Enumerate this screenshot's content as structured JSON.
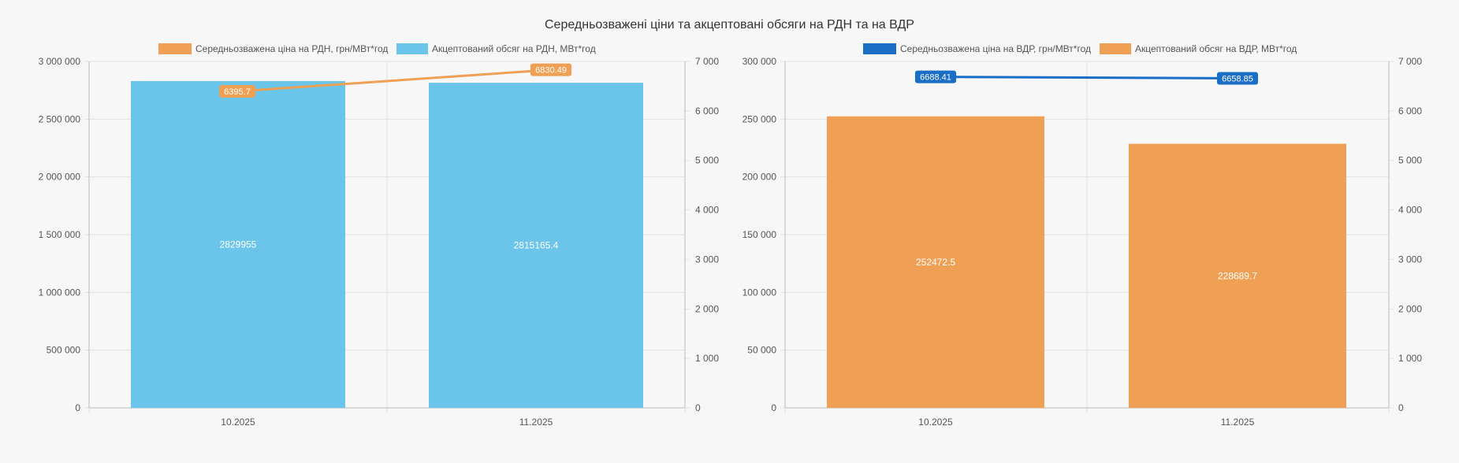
{
  "title": "Середньозважені ціни та акцептовані обсяги на РДН та на ВДР",
  "colors": {
    "blue_bar": "#6bc4ea",
    "orange": "#efa055",
    "blue_line": "#1a6ec5",
    "grid": "#e2e2e2",
    "axis": "#bbbbbb"
  },
  "chart_data": [
    {
      "type": "bar",
      "categories": [
        "10.2025",
        "11.2025"
      ],
      "series": [
        {
          "name": "Середньозважена ціна на РДН, грн/МВт*год",
          "type": "line",
          "axis": "right",
          "values": [
            6395.7,
            6830.49
          ],
          "labels": [
            "6395.7",
            "6830.49"
          ],
          "color": "#efa055"
        },
        {
          "name": "Акцептований обсяг на РДН, МВт*год",
          "type": "bar",
          "axis": "left",
          "values": [
            2829955,
            2815165.4
          ],
          "labels": [
            "2829955",
            "2815165.4"
          ],
          "color": "#6bc4ea"
        }
      ],
      "ylim_left": [
        0,
        3000000
      ],
      "yticks_left": [
        "0",
        "500 000",
        "1 000 000",
        "1 500 000",
        "2 000 000",
        "2 500 000",
        "3 000 000"
      ],
      "ylim_right": [
        0,
        7000
      ],
      "yticks_right": [
        "0",
        "1 000",
        "2 000",
        "3 000",
        "4 000",
        "5 000",
        "6 000",
        "7 000"
      ],
      "grid": true,
      "legend_position": "top"
    },
    {
      "type": "bar",
      "categories": [
        "10.2025",
        "11.2025"
      ],
      "series": [
        {
          "name": "Середньозважена ціна на ВДР, грн/МВт*год",
          "type": "line",
          "axis": "right",
          "values": [
            6688.41,
            6658.85
          ],
          "labels": [
            "6688.41",
            "6658.85"
          ],
          "color": "#1a6ec5"
        },
        {
          "name": "Акцептований обсяг на ВДР, МВт*год",
          "type": "bar",
          "axis": "left",
          "values": [
            252472.5,
            228689.7
          ],
          "labels": [
            "252472.5",
            "228689.7"
          ],
          "color": "#efa055"
        }
      ],
      "ylim_left": [
        0,
        300000
      ],
      "yticks_left": [
        "0",
        "50 000",
        "100 000",
        "150 000",
        "200 000",
        "250 000",
        "300 000"
      ],
      "ylim_right": [
        0,
        7000
      ],
      "yticks_right": [
        "0",
        "1 000",
        "2 000",
        "3 000",
        "4 000",
        "5 000",
        "6 000",
        "7 000"
      ],
      "grid": true,
      "legend_position": "top"
    }
  ]
}
